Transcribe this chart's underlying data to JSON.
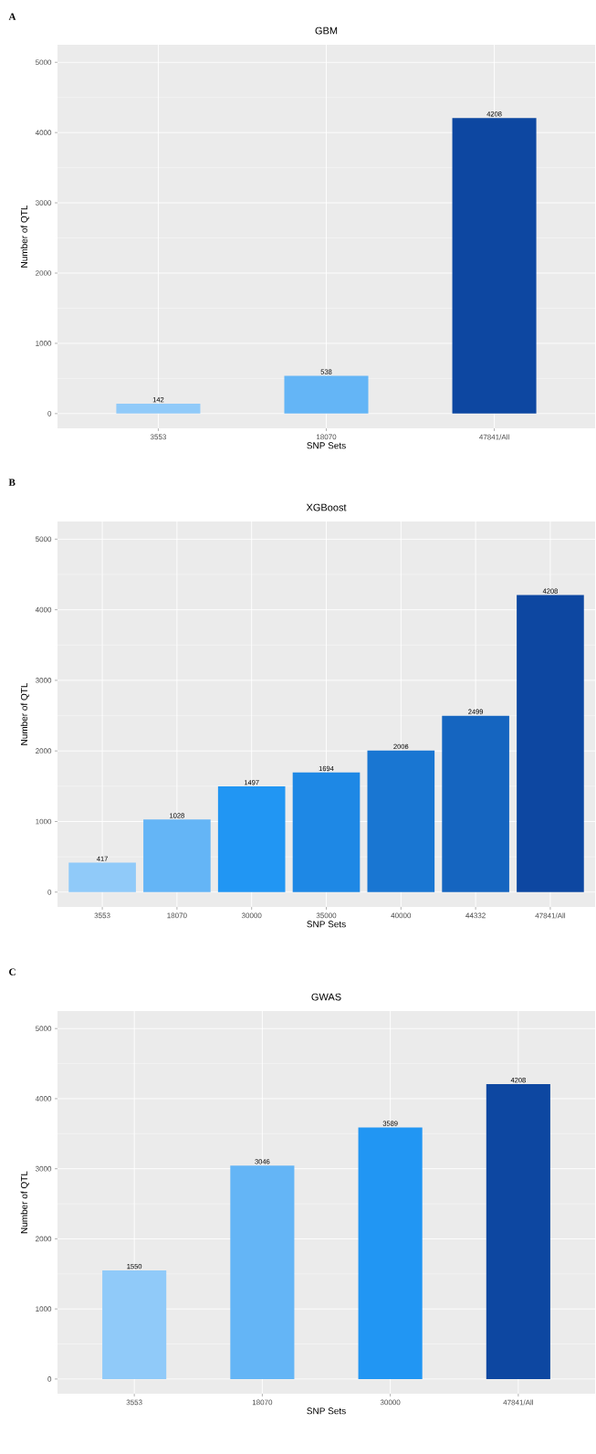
{
  "chart_data": [
    {
      "type": "bar",
      "title": "GBM",
      "xlabel": "SNP Sets",
      "ylabel": "Number of QTL",
      "categories": [
        "3553",
        "18070",
        "47841/All"
      ],
      "values": [
        142,
        538,
        4208
      ],
      "colors": [
        "#90caf9",
        "#64b5f6",
        "#0d47a1"
      ],
      "data_labels": true,
      "ylim": [
        -210,
        5250
      ],
      "yticks": [
        0,
        1000,
        2000,
        3000,
        4000,
        5000
      ],
      "grid": true,
      "annotations": [
        "A"
      ]
    },
    {
      "type": "bar",
      "title": "XGBoost",
      "xlabel": "SNP Sets",
      "ylabel": "Number of QTL",
      "categories": [
        "3553",
        "18070",
        "30000",
        "35000",
        "40000",
        "44332",
        "47841/All"
      ],
      "values": [
        417,
        1028,
        1497,
        1694,
        2006,
        2499,
        4208
      ],
      "colors": [
        "#90caf9",
        "#64b5f6",
        "#2196f3",
        "#1e88e5",
        "#1976d2",
        "#1565c0",
        "#0d47a1"
      ],
      "data_labels": true,
      "ylim": [
        -210,
        5250
      ],
      "yticks": [
        0,
        1000,
        2000,
        3000,
        4000,
        5000
      ],
      "grid": true,
      "annotations": [
        "B"
      ]
    },
    {
      "type": "bar",
      "title": "GWAS",
      "xlabel": "SNP Sets",
      "ylabel": "Number of QTL",
      "categories": [
        "3553",
        "18070",
        "30000",
        "47841/All"
      ],
      "values": [
        1550,
        3046,
        3589,
        4208
      ],
      "colors": [
        "#90caf9",
        "#64b5f6",
        "#2196f3",
        "#0d47a1"
      ],
      "data_labels": true,
      "ylim": [
        -210,
        5250
      ],
      "yticks": [
        0,
        1000,
        2000,
        3000,
        4000,
        5000
      ],
      "grid": true,
      "annotations": [
        "C"
      ]
    }
  ]
}
